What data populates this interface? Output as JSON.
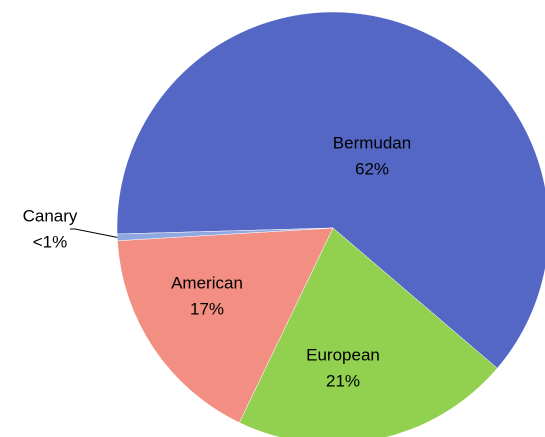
{
  "chart_data": {
    "type": "pie",
    "categories": [
      "Bermudan",
      "European",
      "American",
      "Canary"
    ],
    "values": [
      62,
      21,
      17,
      0.5
    ],
    "value_labels": [
      "62%",
      "21%",
      "17%",
      "<1%"
    ],
    "colors": [
      "#5467c4",
      "#92d050",
      "#f28e82",
      "#8fa8e0"
    ]
  }
}
